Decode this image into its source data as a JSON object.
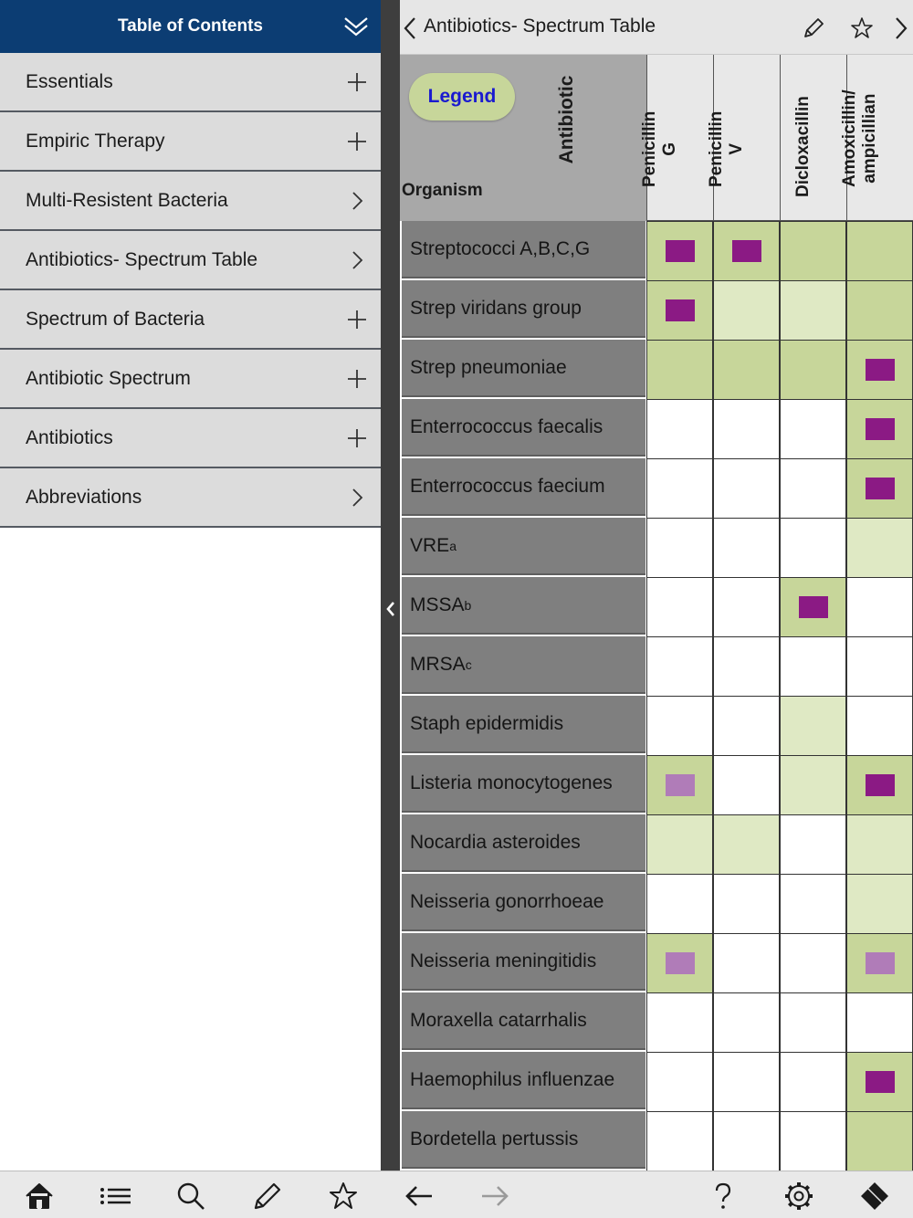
{
  "sidebar": {
    "title": "Table of Contents",
    "collapse_icon": "double-chevron-down-icon",
    "items": [
      {
        "label": "Essentials",
        "icon": "plus-icon"
      },
      {
        "label": "Empiric Therapy",
        "icon": "plus-icon"
      },
      {
        "label": "Multi-Resistent Bacteria",
        "icon": "chevron-right-icon"
      },
      {
        "label": "Antibiotics- Spectrum Table",
        "icon": "chevron-right-icon"
      },
      {
        "label": "Spectrum of Bacteria",
        "icon": "plus-icon"
      },
      {
        "label": "Antibiotic Spectrum",
        "icon": "plus-icon"
      },
      {
        "label": "Antibiotics",
        "icon": "plus-icon"
      },
      {
        "label": "Abbreviations",
        "icon": "chevron-right-icon"
      }
    ]
  },
  "nav": {
    "title": "Antibiotics- Spectrum Table",
    "back_icon": "chevron-left-icon",
    "edit_icon": "pencil-icon",
    "favorite_icon": "star-icon",
    "next_icon": "chevron-right-icon"
  },
  "table": {
    "legend_label": "Legend",
    "antibiotic_axis_label": "Antibiotic",
    "organism_axis_label": "Organism",
    "colors": {
      "full_bg": "#c7d69a",
      "partial_bg": "#dfe9c4",
      "none_bg": "#ffffff",
      "mark_strong": "#8b1a84",
      "mark_weak": "#b07cb8"
    },
    "drugs": [
      [
        "Penicillin",
        "G"
      ],
      [
        "Penicillin",
        "V"
      ],
      [
        "Dicloxacillin"
      ],
      [
        "Amoxicillin/",
        "ampicillian"
      ]
    ],
    "organisms": [
      {
        "name": "Streptococci A,B,C,G",
        "sup": ""
      },
      {
        "name": "Strep viridans group",
        "sup": ""
      },
      {
        "name": "Strep pneumoniae",
        "sup": ""
      },
      {
        "name": "Enterrococcus faecalis",
        "sup": ""
      },
      {
        "name": "Enterrococcus faecium",
        "sup": ""
      },
      {
        "name": "VRE",
        "sup": "a"
      },
      {
        "name": "MSSA",
        "sup": "b"
      },
      {
        "name": "MRSA",
        "sup": "c"
      },
      {
        "name": "Staph epidermidis",
        "sup": ""
      },
      {
        "name": "Listeria monocytogenes",
        "sup": ""
      },
      {
        "name": "Nocardia asteroides",
        "sup": ""
      },
      {
        "name": "Neisseria gonorrhoeae",
        "sup": ""
      },
      {
        "name": "Neisseria meningitidis",
        "sup": ""
      },
      {
        "name": "Moraxella catarrhalis",
        "sup": ""
      },
      {
        "name": "Haemophilus influenzae",
        "sup": ""
      },
      {
        "name": "Bordetella pertussis",
        "sup": ""
      }
    ],
    "cells": [
      [
        {
          "bg": "full",
          "mark": "strong"
        },
        {
          "bg": "full",
          "mark": "strong"
        },
        {
          "bg": "full",
          "mark": ""
        },
        {
          "bg": "full",
          "mark": ""
        }
      ],
      [
        {
          "bg": "full",
          "mark": "strong"
        },
        {
          "bg": "partial",
          "mark": ""
        },
        {
          "bg": "partial",
          "mark": ""
        },
        {
          "bg": "full",
          "mark": ""
        }
      ],
      [
        {
          "bg": "full",
          "mark": ""
        },
        {
          "bg": "full",
          "mark": ""
        },
        {
          "bg": "full",
          "mark": ""
        },
        {
          "bg": "full",
          "mark": "strong"
        }
      ],
      [
        {
          "bg": "none",
          "mark": ""
        },
        {
          "bg": "none",
          "mark": ""
        },
        {
          "bg": "none",
          "mark": ""
        },
        {
          "bg": "full",
          "mark": "strong"
        }
      ],
      [
        {
          "bg": "none",
          "mark": ""
        },
        {
          "bg": "none",
          "mark": ""
        },
        {
          "bg": "none",
          "mark": ""
        },
        {
          "bg": "full",
          "mark": "strong"
        }
      ],
      [
        {
          "bg": "none",
          "mark": ""
        },
        {
          "bg": "none",
          "mark": ""
        },
        {
          "bg": "none",
          "mark": ""
        },
        {
          "bg": "partial",
          "mark": ""
        }
      ],
      [
        {
          "bg": "none",
          "mark": ""
        },
        {
          "bg": "none",
          "mark": ""
        },
        {
          "bg": "full",
          "mark": "strong"
        },
        {
          "bg": "none",
          "mark": ""
        }
      ],
      [
        {
          "bg": "none",
          "mark": ""
        },
        {
          "bg": "none",
          "mark": ""
        },
        {
          "bg": "none",
          "mark": ""
        },
        {
          "bg": "none",
          "mark": ""
        }
      ],
      [
        {
          "bg": "none",
          "mark": ""
        },
        {
          "bg": "none",
          "mark": ""
        },
        {
          "bg": "partial",
          "mark": ""
        },
        {
          "bg": "none",
          "mark": ""
        }
      ],
      [
        {
          "bg": "full",
          "mark": "weak"
        },
        {
          "bg": "none",
          "mark": ""
        },
        {
          "bg": "partial",
          "mark": ""
        },
        {
          "bg": "full",
          "mark": "strong"
        }
      ],
      [
        {
          "bg": "partial",
          "mark": ""
        },
        {
          "bg": "partial",
          "mark": ""
        },
        {
          "bg": "none",
          "mark": ""
        },
        {
          "bg": "partial",
          "mark": ""
        }
      ],
      [
        {
          "bg": "none",
          "mark": ""
        },
        {
          "bg": "none",
          "mark": ""
        },
        {
          "bg": "none",
          "mark": ""
        },
        {
          "bg": "partial",
          "mark": ""
        }
      ],
      [
        {
          "bg": "full",
          "mark": "weak"
        },
        {
          "bg": "none",
          "mark": ""
        },
        {
          "bg": "none",
          "mark": ""
        },
        {
          "bg": "full",
          "mark": "weak"
        }
      ],
      [
        {
          "bg": "none",
          "mark": ""
        },
        {
          "bg": "none",
          "mark": ""
        },
        {
          "bg": "none",
          "mark": ""
        },
        {
          "bg": "none",
          "mark": ""
        }
      ],
      [
        {
          "bg": "none",
          "mark": ""
        },
        {
          "bg": "none",
          "mark": ""
        },
        {
          "bg": "none",
          "mark": ""
        },
        {
          "bg": "full",
          "mark": "strong"
        }
      ],
      [
        {
          "bg": "none",
          "mark": ""
        },
        {
          "bg": "none",
          "mark": ""
        },
        {
          "bg": "none",
          "mark": ""
        },
        {
          "bg": "full",
          "mark": ""
        }
      ]
    ]
  },
  "toolbar": {
    "items": [
      {
        "name": "home-icon"
      },
      {
        "name": "list-icon"
      },
      {
        "name": "search-icon"
      },
      {
        "name": "pencil-icon"
      },
      {
        "name": "star-icon"
      },
      {
        "name": "arrow-left-icon"
      },
      {
        "name": "arrow-right-icon",
        "disabled": true
      },
      {
        "name": "question-icon"
      },
      {
        "name": "gear-icon"
      },
      {
        "name": "eraser-icon"
      }
    ]
  }
}
